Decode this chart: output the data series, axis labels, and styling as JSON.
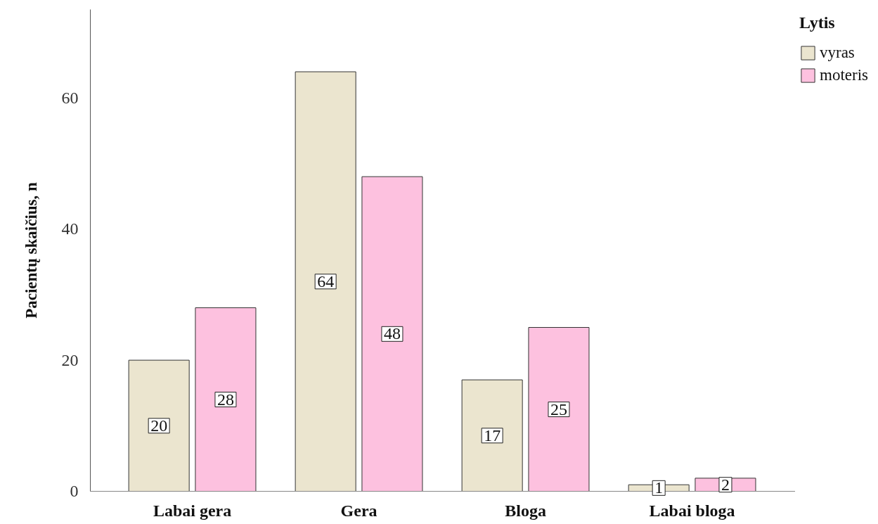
{
  "chart_data": {
    "type": "bar",
    "ylabel": "Pacientų skaičius, n",
    "legend_title": "Lytis",
    "legend": "top right",
    "data_labels": true,
    "categories": [
      "Labai gera",
      "Gera",
      "Bloga",
      "Labai bloga"
    ],
    "series": [
      {
        "name": "vyras",
        "color": "#ebe5cf",
        "values": [
          20,
          64,
          17,
          1
        ]
      },
      {
        "name": "moteris",
        "color": "#fdc1df",
        "values": [
          28,
          48,
          25,
          2
        ]
      }
    ],
    "ylim": [
      0,
      73.5
    ],
    "yticks": [
      0,
      20,
      40,
      60
    ]
  }
}
